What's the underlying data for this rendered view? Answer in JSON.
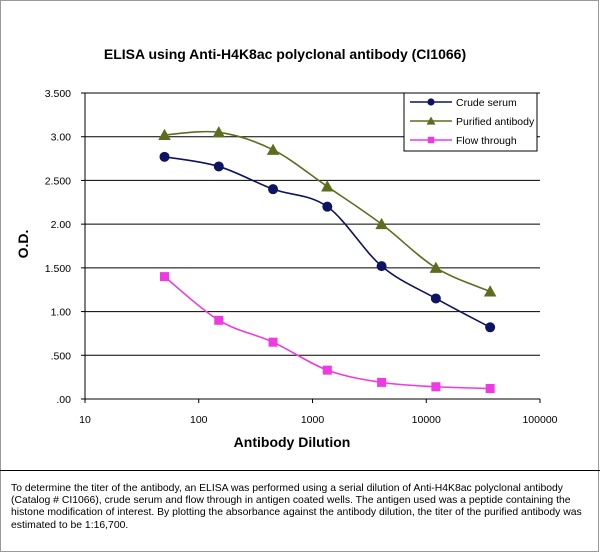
{
  "chart_data": {
    "type": "line",
    "title": "ELISA using Anti-H4K8ac polyclonal antibody (CI1066)",
    "xlabel": "Antibody Dilution",
    "ylabel": "O.D.",
    "x_scale": "log",
    "xlim": [
      10,
      100000
    ],
    "ylim": [
      0,
      3.5
    ],
    "grid": "horizontal",
    "legend_position": "top-right",
    "x_tick_labels": [
      "10",
      "100",
      "1000",
      "10000",
      "100000"
    ],
    "y_tick_labels": [
      ".00",
      ".500",
      "1.00",
      "1.500",
      "2.00",
      "2.500",
      "3.00",
      "3.500"
    ],
    "x": [
      50,
      150,
      450,
      1350,
      4050,
      12150,
      36450
    ],
    "series": [
      {
        "name": "Crude serum",
        "color": "#0d1461",
        "marker": "circle",
        "values": [
          2.77,
          2.66,
          2.4,
          2.2,
          1.52,
          1.15,
          0.82
        ]
      },
      {
        "name": "Purified antibody",
        "color": "#5c6e1e",
        "marker": "triangle",
        "values": [
          3.02,
          3.05,
          2.85,
          2.43,
          2.0,
          1.5,
          1.23
        ]
      },
      {
        "name": "Flow through",
        "color": "#ee3ae0",
        "marker": "square",
        "values": [
          1.4,
          0.9,
          0.65,
          0.33,
          0.19,
          0.14,
          0.12
        ]
      }
    ]
  },
  "caption": "To determine the titer of the antibody, an ELISA was performed using a serial dilution of Anti-H4K8ac polyclonal antibody (Catalog # CI1066), crude serum and flow through in antigen coated wells. The antigen used was a peptide containing the histone modification of interest. By plotting the absorbance against the antibody dilution, the titer of the purified antibody was estimated to be 1:16,700."
}
